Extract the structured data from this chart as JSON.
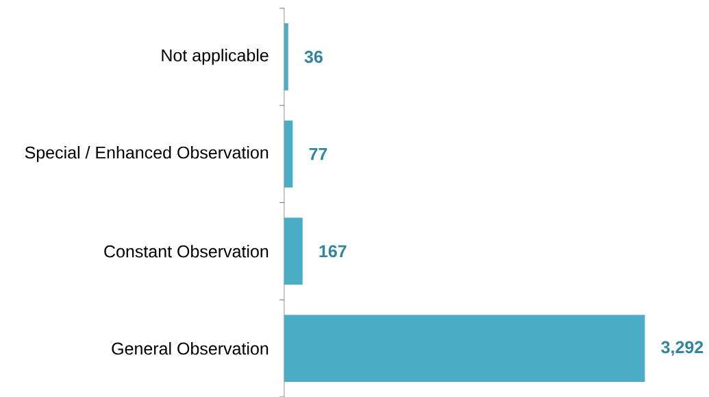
{
  "chart_data": {
    "type": "bar",
    "orientation": "horizontal",
    "categories": [
      "Not applicable",
      "Special / Enhanced Observation",
      "Constant Observation",
      "General Observation"
    ],
    "values": [
      36,
      77,
      167,
      3292
    ],
    "value_labels": [
      "36",
      "77",
      "167",
      "3,292"
    ],
    "color": "#4bacc6"
  }
}
